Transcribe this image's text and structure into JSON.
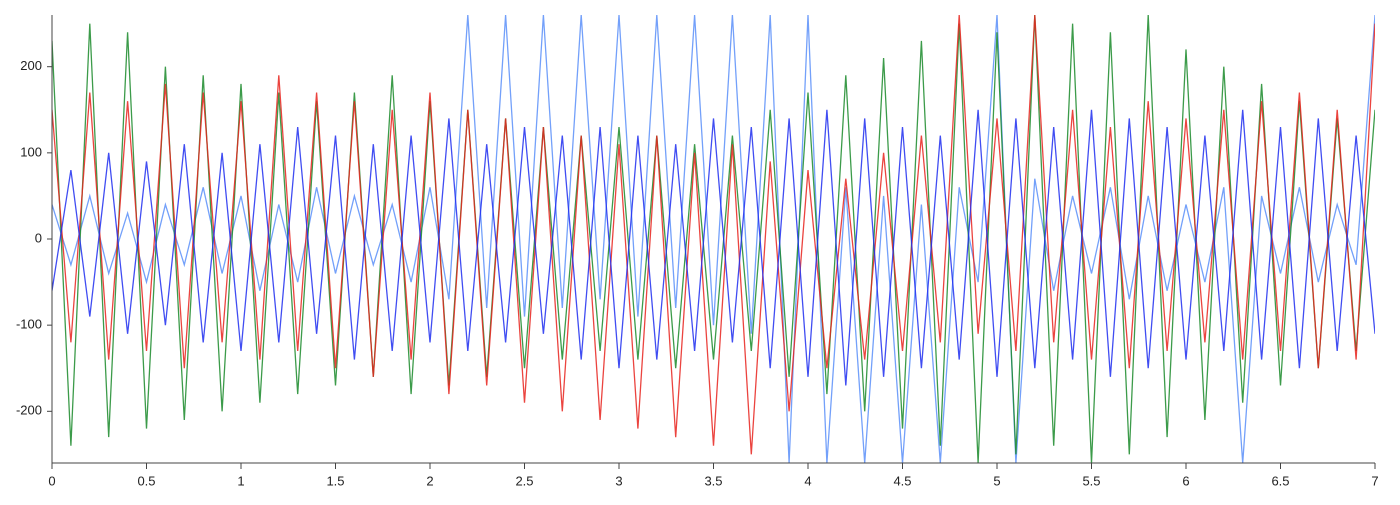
{
  "chart_data": {
    "type": "line",
    "x": [
      0,
      0.1,
      0.2,
      0.3,
      0.4,
      0.5,
      0.6,
      0.7,
      0.8,
      0.9,
      1,
      1.1,
      1.2,
      1.3,
      1.4,
      1.5,
      1.6,
      1.7,
      1.8,
      1.9,
      2,
      2.1,
      2.2,
      2.3,
      2.4,
      2.5,
      2.6,
      2.7,
      2.8,
      2.9,
      3,
      3.1,
      3.2,
      3.3,
      3.4,
      3.5,
      3.6,
      3.7,
      3.8,
      3.9,
      4,
      4.1,
      4.2,
      4.3,
      4.4,
      4.5,
      4.6,
      4.7,
      4.8,
      4.9,
      5,
      5.1,
      5.2,
      5.3,
      5.4,
      5.5,
      5.6,
      5.7,
      5.8,
      5.9,
      6,
      6.1,
      6.2,
      6.3,
      6.4,
      6.5,
      6.6,
      6.7,
      6.8,
      6.9,
      7
    ],
    "series": [
      {
        "color": "#5b8ff9",
        "values": [
          40,
          -30,
          50,
          -40,
          30,
          -50,
          40,
          -30,
          60,
          -40,
          50,
          -60,
          40,
          -50,
          60,
          -40,
          50,
          -30,
          40,
          -50,
          60,
          -70,
          260,
          -80,
          260,
          -90,
          260,
          -80,
          260,
          -70,
          260,
          -90,
          260,
          -80,
          260,
          -100,
          260,
          -110,
          260,
          -260,
          260,
          -260,
          60,
          -260,
          50,
          -260,
          40,
          -260,
          60,
          -50,
          260,
          -260,
          70,
          -60,
          50,
          -40,
          60,
          -70,
          50,
          -60,
          40,
          -50,
          60,
          -260,
          50,
          -40,
          60,
          -50,
          40,
          -30,
          260
        ]
      },
      {
        "color": "#1a8a2a",
        "values": [
          230,
          -240,
          250,
          -230,
          240,
          -220,
          200,
          -210,
          190,
          -200,
          180,
          -190,
          170,
          -180,
          160,
          -170,
          170,
          -160,
          190,
          -180,
          160,
          -170,
          150,
          -160,
          140,
          -150,
          130,
          -140,
          120,
          -130,
          130,
          -140,
          120,
          -150,
          110,
          -140,
          120,
          -130,
          150,
          -160,
          170,
          -180,
          190,
          -200,
          210,
          -220,
          230,
          -240,
          250,
          -260,
          240,
          -250,
          260,
          -240,
          250,
          -260,
          240,
          -250,
          260,
          -230,
          220,
          -210,
          200,
          -190,
          180,
          -170,
          160,
          -150,
          140,
          -130,
          150
        ]
      },
      {
        "color": "#e8231d",
        "values": [
          150,
          -120,
          170,
          -140,
          160,
          -130,
          180,
          -150,
          170,
          -120,
          160,
          -140,
          190,
          -130,
          170,
          -150,
          160,
          -160,
          150,
          -140,
          170,
          -180,
          150,
          -170,
          140,
          -190,
          130,
          -200,
          120,
          -210,
          110,
          -220,
          120,
          -230,
          100,
          -240,
          110,
          -250,
          90,
          -200,
          80,
          -150,
          70,
          -140,
          100,
          -130,
          120,
          -120,
          260,
          -110,
          140,
          -130,
          260,
          -120,
          150,
          -140,
          130,
          -150,
          160,
          -130,
          140,
          -120,
          150,
          -140,
          160,
          -130,
          170,
          -150,
          150,
          -140,
          250
        ]
      },
      {
        "color": "#1f2ef0",
        "values": [
          -60,
          80,
          -90,
          100,
          -110,
          90,
          -100,
          110,
          -120,
          100,
          -130,
          110,
          -120,
          130,
          -110,
          120,
          -140,
          110,
          -130,
          120,
          -120,
          140,
          -130,
          110,
          -120,
          130,
          -110,
          120,
          -140,
          130,
          -150,
          120,
          -140,
          110,
          -130,
          140,
          -120,
          130,
          -150,
          140,
          -160,
          150,
          -170,
          140,
          -160,
          130,
          -150,
          120,
          -140,
          150,
          -160,
          140,
          -150,
          130,
          -140,
          150,
          -160,
          140,
          -150,
          130,
          -140,
          120,
          -130,
          150,
          -140,
          130,
          -150,
          140,
          -130,
          120,
          -110
        ]
      }
    ],
    "xlim": [
      0,
      7
    ],
    "xticks": [
      0,
      0.5,
      1,
      1.5,
      2,
      2.5,
      3,
      3.5,
      4,
      4.5,
      5,
      5.5,
      6,
      6.5,
      7
    ],
    "ylim": [
      -260,
      260
    ],
    "yticks": [
      -200,
      -100,
      0,
      100,
      200
    ]
  }
}
